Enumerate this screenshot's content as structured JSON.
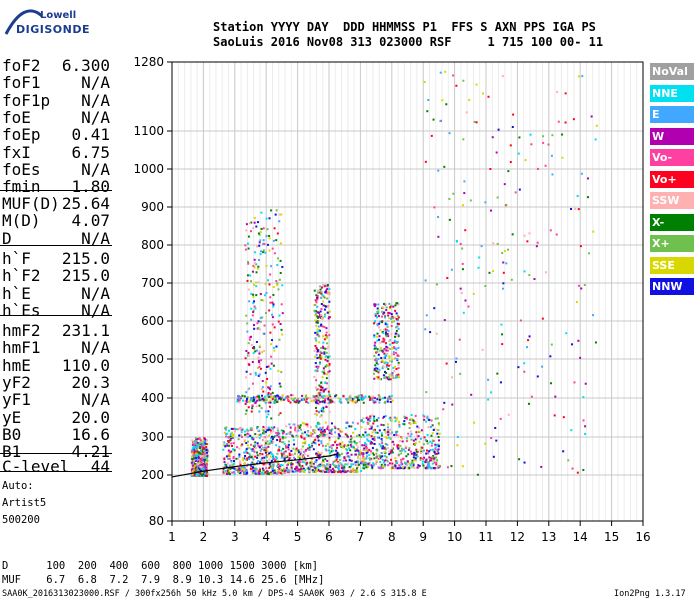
{
  "logo": {
    "line1": "Lowell",
    "line2": "DIGISONDE"
  },
  "header": {
    "line1": "Station YYYY DAY  DDD HHMMSS P1  FFS S AXN PPS IGA PS",
    "line2": "SaoLuis 2016 Nov08 313 023000 RSF     1 715 100 00- 11"
  },
  "params_a": [
    {
      "k": "foF2",
      "v": "6.300"
    },
    {
      "k": "foF1",
      "v": "N/A"
    },
    {
      "k": "foF1p",
      "v": "N/A"
    },
    {
      "k": "foE",
      "v": "N/A"
    },
    {
      "k": "foEp",
      "v": "0.41"
    },
    {
      "k": "fxI",
      "v": "6.75"
    },
    {
      "k": "foEs",
      "v": "N/A"
    },
    {
      "k": "fmin",
      "v": "1.80"
    }
  ],
  "params_b": [
    {
      "k": "MUF(D)",
      "v": "25.64"
    },
    {
      "k": "M(D)",
      "v": "4.07"
    },
    {
      "k": "D",
      "v": "N/A"
    }
  ],
  "params_c": [
    {
      "k": "h`F",
      "v": "215.0"
    },
    {
      "k": "h`F2",
      "v": "215.0"
    },
    {
      "k": "h`E",
      "v": "N/A"
    },
    {
      "k": "h`Es",
      "v": "N/A"
    }
  ],
  "params_d": [
    {
      "k": "hmF2",
      "v": "231.1"
    },
    {
      "k": "hmF1",
      "v": "N/A"
    },
    {
      "k": "hmE",
      "v": "110.0"
    },
    {
      "k": "yF2",
      "v": "20.3"
    },
    {
      "k": "yF1",
      "v": "N/A"
    },
    {
      "k": "yE",
      "v": "20.0"
    },
    {
      "k": "B0",
      "v": "16.6"
    },
    {
      "k": "B1",
      "v": "4.21"
    }
  ],
  "clevel": {
    "k": "C-level",
    "v": "44"
  },
  "auto": [
    "Auto:",
    "Artist5",
    "500200"
  ],
  "legend": [
    {
      "label": "NoVal",
      "color": "#a0a0a0"
    },
    {
      "label": "NNE",
      "color": "#00e0f0"
    },
    {
      "label": "E",
      "color": "#40a8ff"
    },
    {
      "label": "W",
      "color": "#b000b0"
    },
    {
      "label": "Vo-",
      "color": "#ff40a0"
    },
    {
      "label": "Vo+",
      "color": "#ff0020"
    },
    {
      "label": "SSW",
      "color": "#ffb0b0"
    },
    {
      "label": "X-",
      "color": "#008000"
    },
    {
      "label": "X+",
      "color": "#70c050"
    },
    {
      "label": "SSE",
      "color": "#d8d800"
    },
    {
      "label": "NNW",
      "color": "#1010e0"
    }
  ],
  "footer": {
    "d_line": "D      100  200  400  600  800 1000 1500 3000 [km]",
    "muf_line": "MUF    6.7  6.8  7.2  7.9  8.9 10.3 14.6 25.6 [MHz]",
    "src_line": "SAA0K_2016313023000.RSF / 300fx256h 50 kHz 5.0 km / DPS-4 SAA0K 903 / 2.6 S 315.8 E",
    "version": "Ion2Png 1.3.17"
  },
  "chart_data": {
    "type": "scatter",
    "x_ticks": [
      "1",
      "2",
      "3",
      "4",
      "5",
      "6",
      "7",
      "8",
      "9",
      "10",
      "11",
      "12",
      "13",
      "14",
      "15",
      "16"
    ],
    "y_ticks": [
      "80",
      "200",
      "300",
      "400",
      "500",
      "600",
      "700",
      "800",
      "900",
      "1000",
      "1100",
      "1280"
    ],
    "xlim": [
      1,
      16
    ],
    "ylim": [
      80,
      1280
    ],
    "grid": true,
    "trace": {
      "x": [
        1.0,
        2.0,
        3.0,
        4.0,
        5.0,
        6.0,
        6.3
      ],
      "y": [
        195,
        210,
        222,
        232,
        240,
        250,
        256
      ]
    },
    "clusters": [
      {
        "x": [
          1.6,
          2.1
        ],
        "y": [
          200,
          300
        ]
      },
      {
        "x": [
          2.6,
          4.6
        ],
        "y": [
          205,
          330
        ]
      },
      {
        "x": [
          4.6,
          7.0
        ],
        "y": [
          210,
          340
        ]
      },
      {
        "x": [
          7.0,
          9.5
        ],
        "y": [
          220,
          360
        ]
      },
      {
        "x": [
          3.3,
          4.5
        ],
        "y": [
          350,
          900
        ]
      },
      {
        "x": [
          5.5,
          6.0
        ],
        "y": [
          300,
          700
        ]
      },
      {
        "x": [
          7.4,
          8.2
        ],
        "y": [
          450,
          650
        ]
      },
      {
        "x": [
          3.0,
          8.0
        ],
        "y": [
          390,
          410
        ]
      }
    ]
  }
}
